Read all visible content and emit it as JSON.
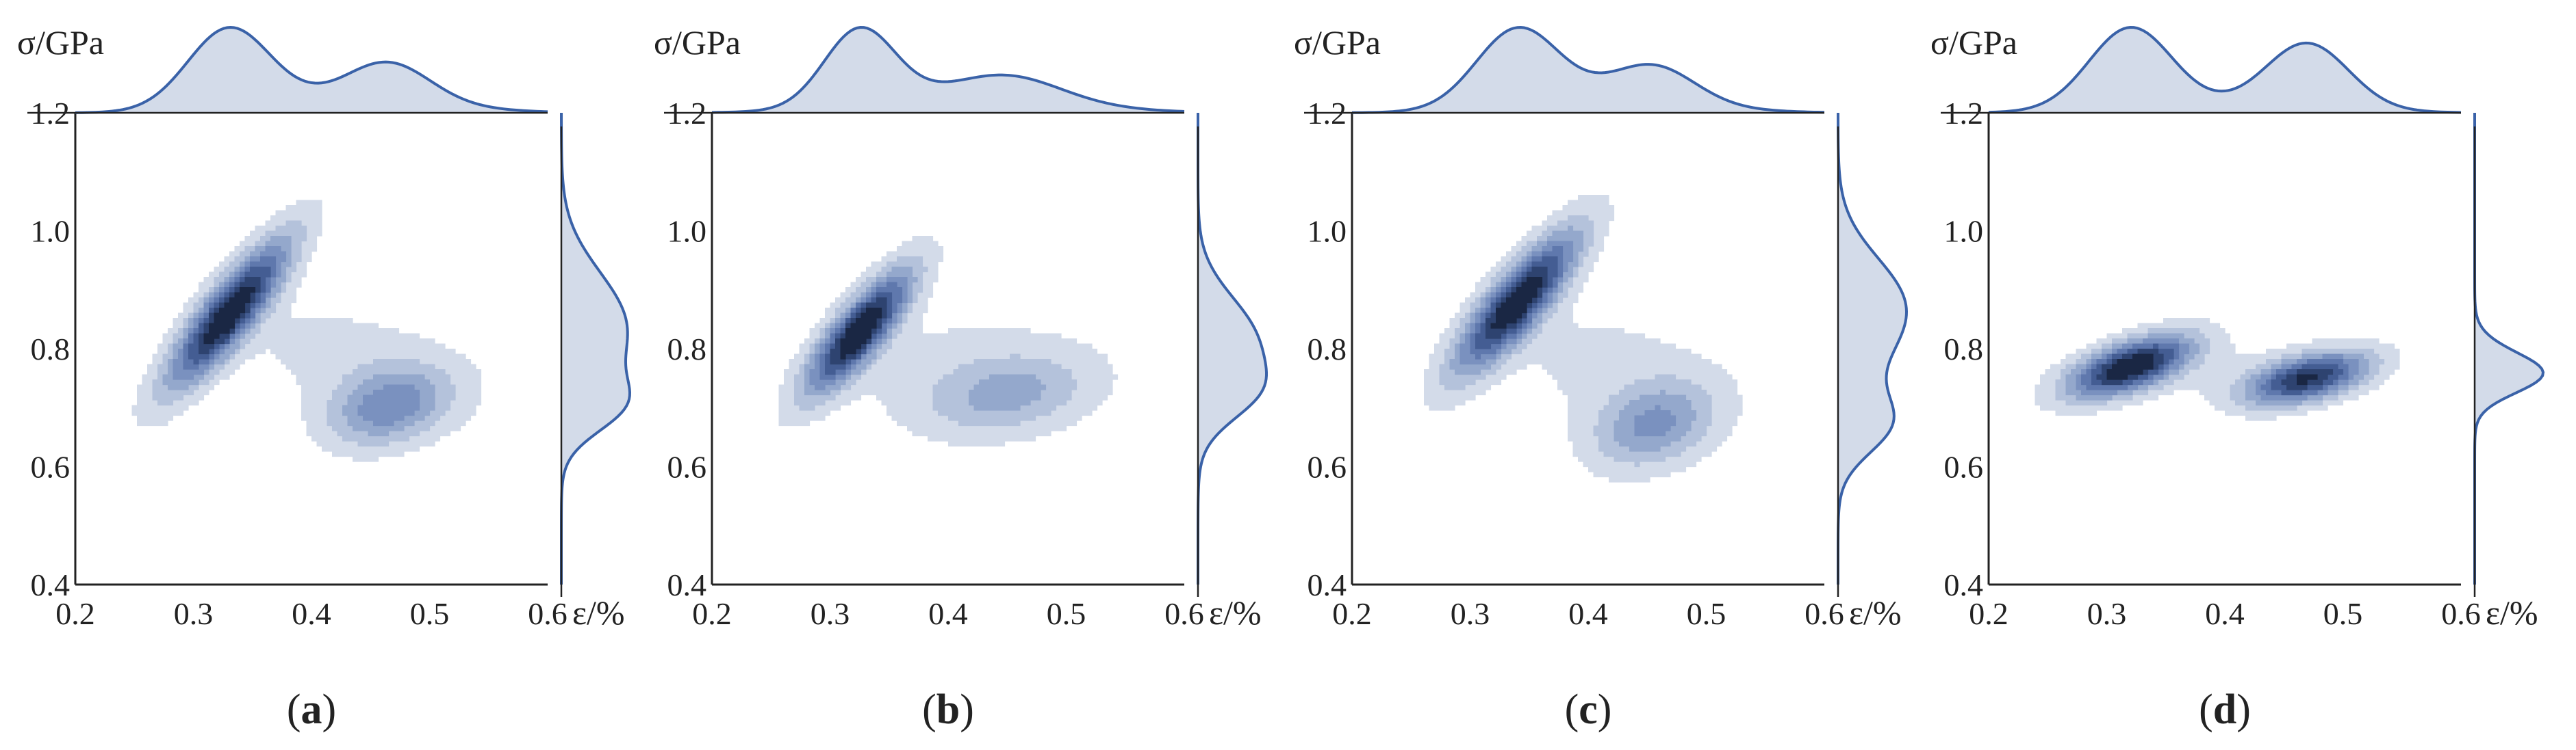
{
  "figure": {
    "panels": [
      {
        "id": "a",
        "caption_open": "(",
        "caption_letter": "a",
        "caption_close": ")",
        "y_unit_label": "σ/GPa",
        "x_unit_label": "ε/%"
      },
      {
        "id": "b",
        "caption_open": "(",
        "caption_letter": "b",
        "caption_close": ")",
        "y_unit_label": "σ/GPa",
        "x_unit_label": "ε/%"
      },
      {
        "id": "c",
        "caption_open": "(",
        "caption_letter": "c",
        "caption_close": ")",
        "y_unit_label": "σ/GPa",
        "x_unit_label": "ε/%"
      },
      {
        "id": "d",
        "caption_open": "(",
        "caption_letter": "d",
        "caption_close": ")",
        "y_unit_label": "σ/GPa",
        "x_unit_label": "ε/%"
      }
    ]
  },
  "chart_data": [
    {
      "type": "kde_contour",
      "panel": "a",
      "xlabel": "ε/%",
      "ylabel": "σ/GPa",
      "xlim": [
        0.2,
        0.6
      ],
      "ylim": [
        0.4,
        1.2
      ],
      "xticks": [
        "0.2",
        "0.3",
        "0.4",
        "0.5",
        "0.6"
      ],
      "yticks": [
        "0.4",
        "0.6",
        "0.8",
        "1.0",
        "1.2"
      ],
      "levels": 8,
      "components": [
        {
          "weight": 0.55,
          "mean": [
            0.33,
            0.86
          ],
          "std": [
            0.035,
            0.085
          ],
          "corr": 0.86
        },
        {
          "weight": 0.25,
          "mean": [
            0.465,
            0.7
          ],
          "std": [
            0.035,
            0.045
          ],
          "corr": 0.3
        },
        {
          "weight": 0.2,
          "mean": [
            0.44,
            0.78
          ],
          "std": [
            0.07,
            0.07
          ],
          "corr": -0.4
        }
      ]
    },
    {
      "type": "kde_contour",
      "panel": "b",
      "xlabel": "ε/%",
      "ylabel": "σ/GPa",
      "xlim": [
        0.2,
        0.6
      ],
      "ylim": [
        0.4,
        1.2
      ],
      "xticks": [
        "0.2",
        "0.3",
        "0.4",
        "0.5",
        "0.6"
      ],
      "yticks": [
        "0.4",
        "0.6",
        "0.8",
        "1.0",
        "1.2"
      ],
      "levels": 8,
      "components": [
        {
          "weight": 0.5,
          "mean": [
            0.325,
            0.83
          ],
          "std": [
            0.03,
            0.07
          ],
          "corr": 0.82
        },
        {
          "weight": 0.22,
          "mean": [
            0.45,
            0.72
          ],
          "std": [
            0.045,
            0.045
          ],
          "corr": 0.3
        },
        {
          "weight": 0.28,
          "mean": [
            0.42,
            0.76
          ],
          "std": [
            0.08,
            0.07
          ],
          "corr": 0.0
        }
      ]
    },
    {
      "type": "kde_contour",
      "panel": "c",
      "xlabel": "ε/%",
      "ylabel": "σ/GPa",
      "xlim": [
        0.2,
        0.6
      ],
      "ylim": [
        0.4,
        1.2
      ],
      "xticks": [
        "0.2",
        "0.3",
        "0.4",
        "0.5",
        "0.6"
      ],
      "yticks": [
        "0.4",
        "0.6",
        "0.8",
        "1.0",
        "1.2"
      ],
      "levels": 8,
      "components": [
        {
          "weight": 0.55,
          "mean": [
            0.34,
            0.88
          ],
          "std": [
            0.035,
            0.08
          ],
          "corr": 0.84
        },
        {
          "weight": 0.25,
          "mean": [
            0.455,
            0.67
          ],
          "std": [
            0.035,
            0.05
          ],
          "corr": 0.3
        },
        {
          "weight": 0.2,
          "mean": [
            0.42,
            0.77
          ],
          "std": [
            0.07,
            0.08
          ],
          "corr": -0.3
        }
      ]
    },
    {
      "type": "kde_contour",
      "panel": "d",
      "xlabel": "ε/%",
      "ylabel": "σ/GPa",
      "xlim": [
        0.2,
        0.6
      ],
      "ylim": [
        0.4,
        1.2
      ],
      "xticks": [
        "0.2",
        "0.3",
        "0.4",
        "0.5",
        "0.6"
      ],
      "yticks": [
        "0.4",
        "0.6",
        "0.8",
        "1.0",
        "1.2"
      ],
      "levels": 8,
      "components": [
        {
          "weight": 0.5,
          "mean": [
            0.32,
            0.77
          ],
          "std": [
            0.035,
            0.035
          ],
          "corr": 0.6
        },
        {
          "weight": 0.4,
          "mean": [
            0.47,
            0.75
          ],
          "std": [
            0.035,
            0.03
          ],
          "corr": 0.5
        },
        {
          "weight": 0.1,
          "mean": [
            0.4,
            0.76
          ],
          "std": [
            0.08,
            0.04
          ],
          "corr": 0.0
        }
      ]
    }
  ],
  "colors": {
    "line": "#3a62a8",
    "marginal_fill": "#d3dbe9",
    "axis": "#222222",
    "levels": [
      "#d3dbe9",
      "#b4c2db",
      "#94a8cc",
      "#7a91bf",
      "#5f78ad",
      "#445d93",
      "#2e4370",
      "#1a2744"
    ]
  }
}
